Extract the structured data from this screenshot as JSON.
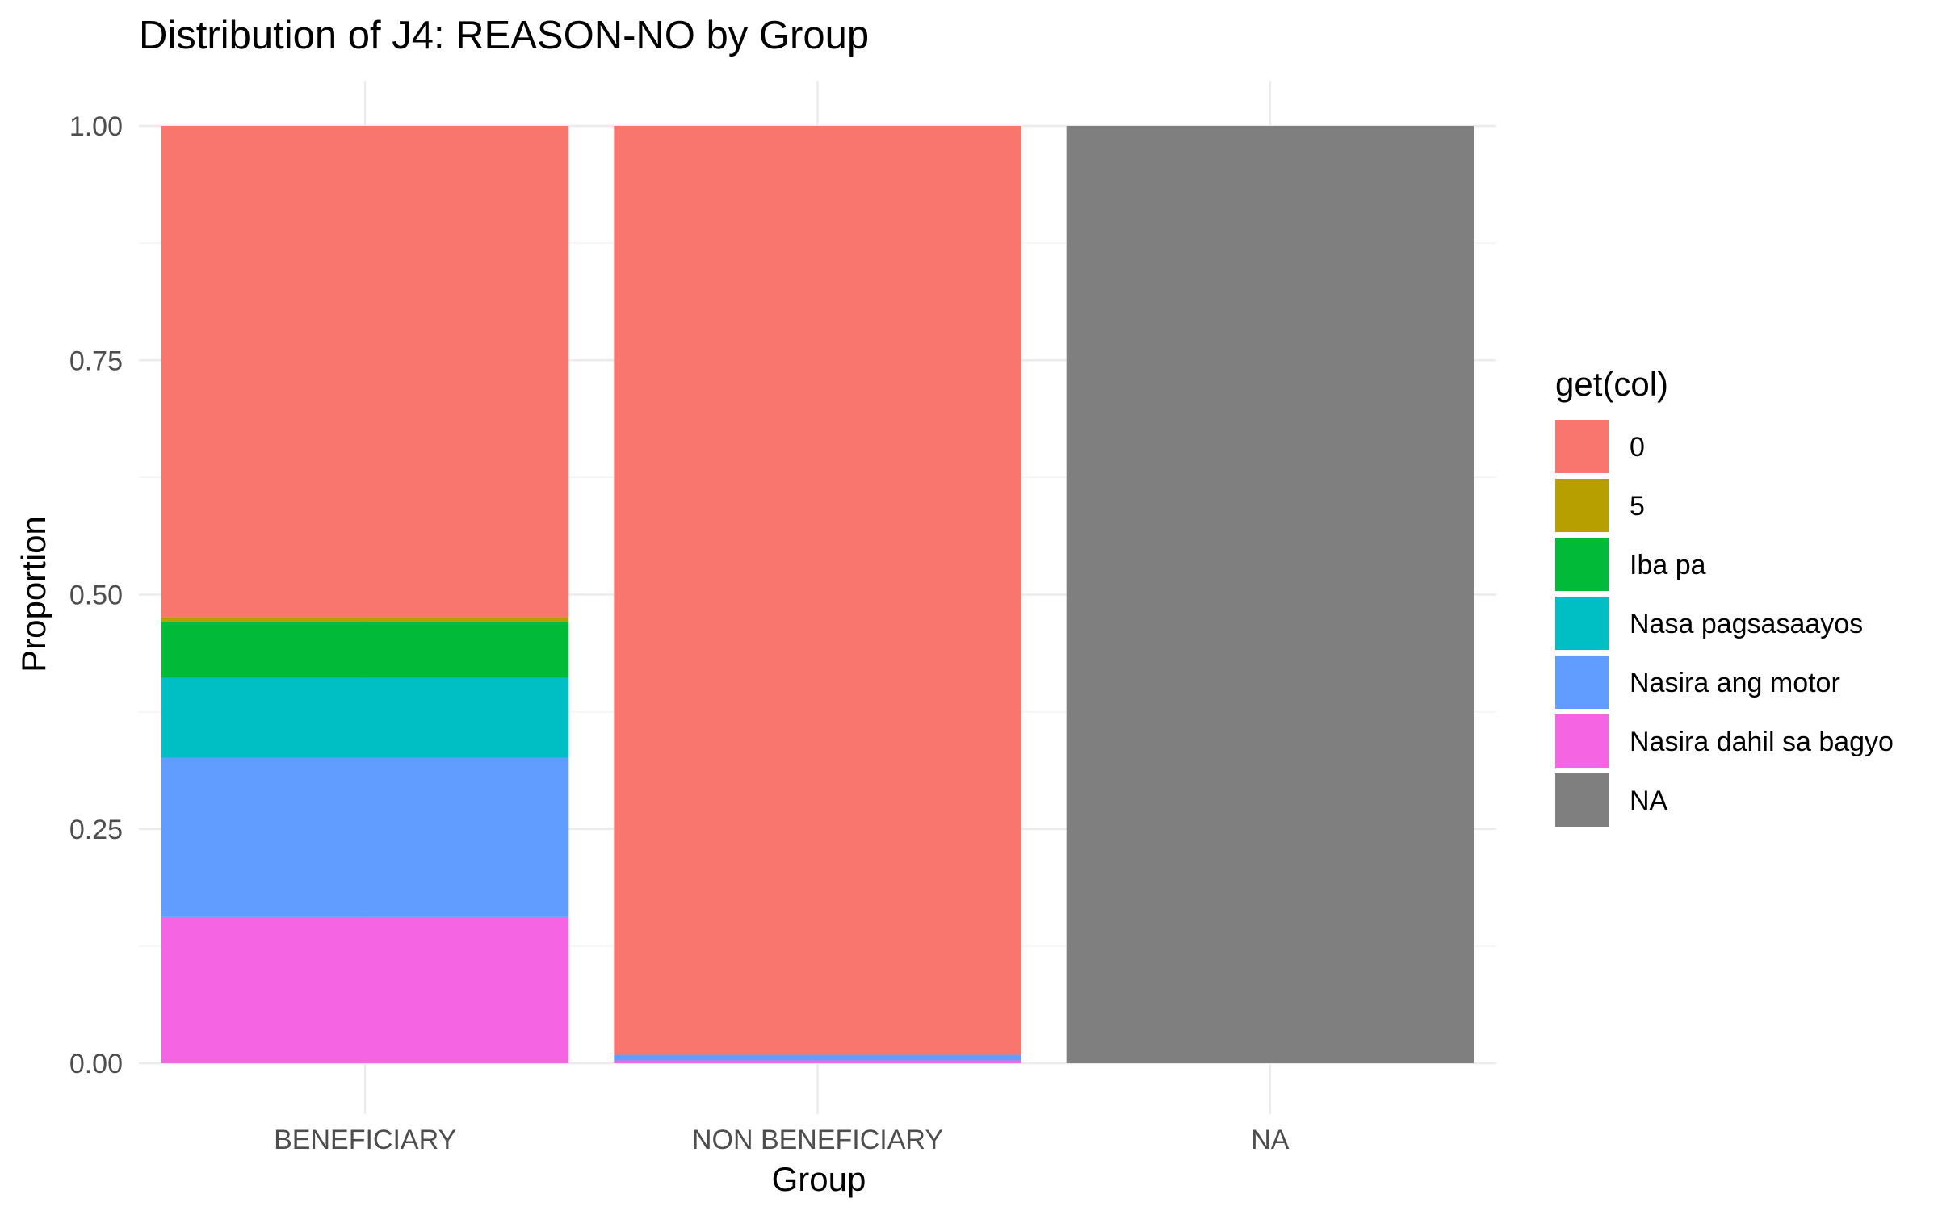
{
  "chart_data": {
    "type": "bar",
    "stacked": true,
    "title": "Distribution of J4: REASON-NO by Group",
    "xlabel": "Group",
    "ylabel": "Proportion",
    "ylim": [
      0,
      1
    ],
    "yticks": [
      "0.00",
      "0.25",
      "0.50",
      "0.75",
      "1.00"
    ],
    "grid": true,
    "legend_position": "right",
    "legend_title": "get(col)",
    "categories": [
      "BENEFICIARY",
      "NON BENEFICIARY",
      "NA"
    ],
    "series": [
      {
        "name": "0",
        "color": "#F8766D",
        "values": [
          0.524,
          0.991,
          0
        ]
      },
      {
        "name": "5",
        "color": "#B79F00",
        "values": [
          0.005,
          0,
          0
        ]
      },
      {
        "name": "Iba pa",
        "color": "#00BA38",
        "values": [
          0.06,
          0,
          0
        ]
      },
      {
        "name": "Nasa pagsasaayos",
        "color": "#00BFC4",
        "values": [
          0.085,
          0,
          0
        ]
      },
      {
        "name": "Nasira ang motor",
        "color": "#619CFF",
        "values": [
          0.17,
          0.006,
          0
        ]
      },
      {
        "name": "Nasira dahil sa bagyo",
        "color": "#F564E3",
        "values": [
          0.156,
          0.003,
          0
        ]
      },
      {
        "name": "NA",
        "color": "#7F7F7F",
        "values": [
          0,
          0,
          1.0
        ]
      }
    ]
  }
}
